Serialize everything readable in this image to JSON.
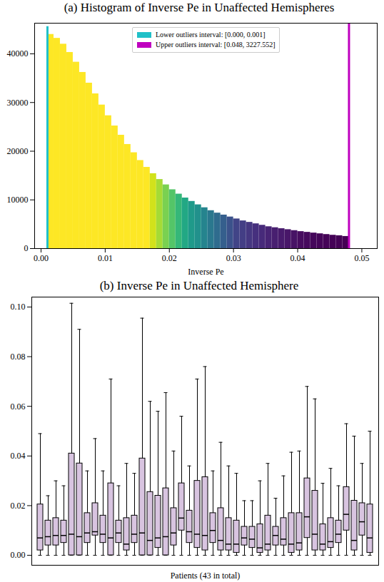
{
  "chart_data": [
    {
      "type": "histogram",
      "title": "(a) Histogram of Inverse Pe in Unaffected Hemispheres",
      "x_label": "Inverse Pe",
      "bins": [
        0.001,
        0.002,
        0.003,
        0.004,
        0.005,
        0.006,
        0.007,
        0.008,
        0.009,
        0.01,
        0.011,
        0.012,
        0.013,
        0.014,
        0.015,
        0.016,
        0.017,
        0.018,
        0.019,
        0.02,
        0.021,
        0.022,
        0.023,
        0.024,
        0.025,
        0.026,
        0.027,
        0.028,
        0.029,
        0.03,
        0.031,
        0.032,
        0.033,
        0.034,
        0.035,
        0.036,
        0.037,
        0.038,
        0.039,
        0.04,
        0.041,
        0.042,
        0.043,
        0.044,
        0.045,
        0.046,
        0.047,
        0.048
      ],
      "values": [
        44000,
        43200,
        42000,
        40300,
        38300,
        36200,
        34000,
        31800,
        29500,
        27300,
        25200,
        23300,
        21400,
        19700,
        18100,
        16700,
        15400,
        14200,
        13100,
        12100,
        11200,
        10400,
        9700,
        9000,
        8400,
        7800,
        7300,
        6900,
        6500,
        6100,
        5700,
        5400,
        5100,
        4800,
        4500,
        4300,
        4100,
        3900,
        3700,
        3500,
        3350,
        3200,
        3050,
        2900,
        2750,
        2650,
        2500
      ],
      "colors": [
        "#fde725",
        "#fde725",
        "#fde725",
        "#fde725",
        "#fde725",
        "#fde725",
        "#fde725",
        "#fde725",
        "#fde725",
        "#fde725",
        "#fde725",
        "#fde725",
        "#fde725",
        "#fde725",
        "#fde725",
        "#fde725",
        "#d2e21b",
        "#a5db36",
        "#7ad151",
        "#54c568",
        "#35b779",
        "#22a884",
        "#1f9a8a",
        "#21918c",
        "#25848e",
        "#2a788e",
        "#2f6c8e",
        "#355f8d",
        "#3b528b",
        "#414487",
        "#433e85",
        "#453781",
        "#46307e",
        "#472a7a",
        "#482475",
        "#481f70",
        "#481b6d",
        "#481769",
        "#471365",
        "#470d60",
        "#460a5d",
        "#45085b",
        "#450659",
        "#450457",
        "#440256",
        "#440255",
        "#440154"
      ],
      "outliers": [
        {
          "name": "Lower outliers interval: [0.000, 0.001]",
          "x": 0.001,
          "value": 45600,
          "color": "#20c0c8"
        },
        {
          "name": "Upper outliers interval: [0.048, 3227.552]",
          "x": 0.048,
          "value": 46300,
          "color": "#bf00bf"
        }
      ],
      "legend": "upper center",
      "xlim": [
        -0.001,
        0.0524
      ],
      "xticks": [
        {
          "value": 0,
          "label": "0.00"
        },
        {
          "value": 0.01,
          "label": "0.01"
        },
        {
          "value": 0.02,
          "label": "0.02"
        },
        {
          "value": 0.03,
          "label": "0.03"
        },
        {
          "value": 0.04,
          "label": "0.04"
        },
        {
          "value": 0.05,
          "label": "0.05"
        }
      ],
      "ylim": [
        0,
        46300
      ],
      "yticks": [
        0,
        10000,
        20000,
        30000,
        40000
      ]
    },
    {
      "type": "box",
      "title": "(b) Inverse Pe in Unaffected Hemisphere",
      "x_label": "Patients (43 in total)",
      "categories": [
        null,
        null,
        null,
        null,
        null,
        null,
        null,
        null,
        null,
        null,
        null,
        null,
        null,
        null,
        null,
        null,
        null,
        null,
        null,
        null,
        null,
        null,
        null,
        null,
        null,
        null,
        null,
        null,
        null,
        null,
        null,
        null,
        null,
        null,
        null,
        null,
        null,
        null,
        null,
        null,
        null,
        null,
        null
      ],
      "whisker_low": [
        0,
        0,
        0,
        0,
        0,
        0,
        0,
        0,
        0,
        0,
        0,
        0,
        0,
        0,
        0,
        0,
        0,
        0,
        0,
        0,
        0,
        0,
        0,
        0,
        0,
        0,
        0,
        0,
        0,
        0,
        0,
        0,
        0,
        0,
        0,
        0,
        0,
        0,
        0,
        0,
        0,
        0,
        0
      ],
      "q1": [
        0.002,
        0.004,
        0.004,
        0.005,
        0.0,
        0.0,
        0.005,
        0.008,
        0.005,
        0.0,
        0.005,
        0.002,
        0.005,
        0.0,
        0.0,
        0.003,
        0.0,
        0.004,
        0.01,
        0.005,
        0.003,
        0.002,
        0.005,
        0.002,
        0.002,
        0.001,
        0.004,
        0.003,
        0.001,
        0.002,
        0.004,
        0.004,
        0.001,
        0.002,
        0.007,
        0.002,
        0.002,
        0.003,
        0.005,
        0.01,
        0.002,
        0.008,
        0.001
      ],
      "median": [
        0.007,
        0.0075,
        0.008,
        0.008,
        0.0085,
        0.0075,
        0.009,
        0.0095,
        0.0085,
        0.007,
        0.009,
        0.0045,
        0.0085,
        0.009,
        0.006,
        0.007,
        0.0075,
        0.009,
        0.015,
        0.0095,
        0.0085,
        0.008,
        0.01,
        0.006,
        0.0045,
        0.0045,
        0.007,
        0.0065,
        0.003,
        0.0045,
        0.008,
        0.0065,
        0.0045,
        0.005,
        0.0155,
        0.0085,
        0.0045,
        0.0055,
        0.0085,
        0.0165,
        0.006,
        0.0135,
        0.007
      ],
      "q3": [
        0.0205,
        0.014,
        0.015,
        0.014,
        0.041,
        0.037,
        0.017,
        0.021,
        0.016,
        0.029,
        0.014,
        0.015,
        0.016,
        0.039,
        0.0255,
        0.024,
        0.027,
        0.019,
        0.029,
        0.018,
        0.03,
        0.0315,
        0.017,
        0.019,
        0.015,
        0.014,
        0.0115,
        0.0115,
        0.0125,
        0.016,
        0.0115,
        0.015,
        0.017,
        0.017,
        0.031,
        0.026,
        0.0125,
        0.015,
        0.014,
        0.0275,
        0.022,
        0.021,
        0.0205
      ],
      "whisker_high": [
        0.049,
        0.024,
        0.03,
        0.028,
        0.1015,
        0.091,
        0.034,
        0.047,
        0.034,
        0.071,
        0.028,
        0.037,
        0.033,
        0.0955,
        0.062,
        0.058,
        0.0655,
        0.042,
        0.056,
        0.036,
        0.071,
        0.076,
        0.034,
        0.0455,
        0.036,
        0.033,
        0.022,
        0.022,
        0.03,
        0.037,
        0.023,
        0.032,
        0.0415,
        0.042,
        0.068,
        0.063,
        0.029,
        0.035,
        0.028,
        0.053,
        0.048,
        0.037,
        0.05
      ],
      "color": "#d8c4e0",
      "tick_labels": "y",
      "ylim": [
        -0.004,
        0.104
      ],
      "yticks": [
        {
          "value": 0,
          "label": "0.00"
        },
        {
          "value": 0.02,
          "label": "0.02"
        },
        {
          "value": 0.04,
          "label": "0.04"
        },
        {
          "value": 0.06,
          "label": "0.06"
        },
        {
          "value": 0.08,
          "label": "0.08"
        },
        {
          "value": 0.1,
          "label": "0.10"
        }
      ]
    }
  ]
}
